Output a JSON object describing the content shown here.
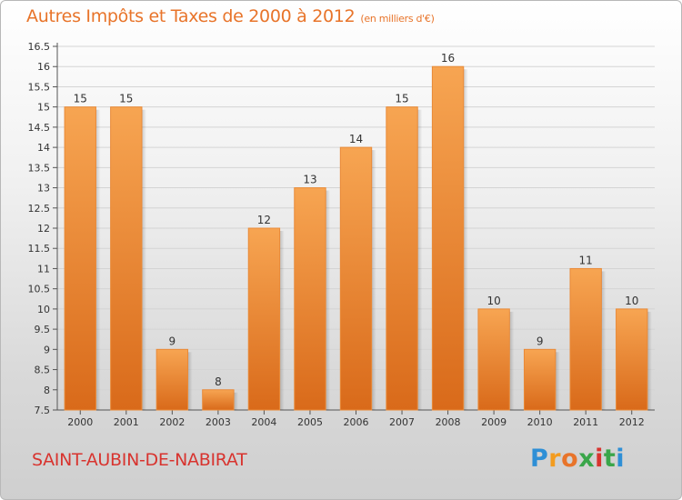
{
  "chart_data": {
    "type": "bar",
    "title": "Autres Impôts et Taxes de 2000 à 2012",
    "unit_label": "(en milliers d'€)",
    "categories": [
      "2000",
      "2001",
      "2002",
      "2003",
      "2004",
      "2005",
      "2006",
      "2007",
      "2008",
      "2009",
      "2010",
      "2011",
      "2012"
    ],
    "values": [
      15,
      15,
      9,
      8,
      12,
      13,
      14,
      15,
      16,
      10,
      9,
      11,
      10
    ],
    "ylim": [
      7.5,
      16.5
    ],
    "yticks": [
      "7.5",
      "8",
      "8.5",
      "9",
      "9.5",
      "10",
      "10.5",
      "11",
      "11.5",
      "12",
      "12.5",
      "13",
      "13.5",
      "14",
      "14.5",
      "15",
      "15.5",
      "16",
      "16.5"
    ],
    "grid": true,
    "bar_color": "#f0913a"
  },
  "commune": "SAINT-AUBIN-DE-NABIRAT",
  "logo": {
    "letters": [
      "P",
      "r",
      "o",
      "x",
      "i",
      "t",
      "i"
    ],
    "colors": [
      "#2e8fd6",
      "#f39c1f",
      "#e8742a",
      "#3aa64a",
      "#d8342f",
      "#3aa64a",
      "#2e8fd6"
    ]
  }
}
